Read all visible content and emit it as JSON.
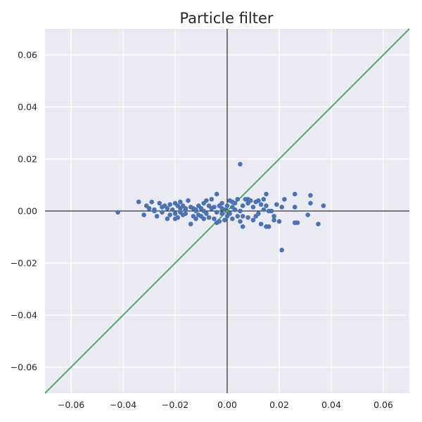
{
  "chart_data": {
    "type": "scatter",
    "title": "Particle filter",
    "xlabel": "",
    "ylabel": "",
    "xlim": [
      -0.07,
      0.07
    ],
    "ylim": [
      -0.07,
      0.07
    ],
    "xticks": [
      -0.06,
      -0.04,
      -0.02,
      0.0,
      0.02,
      0.04,
      0.06
    ],
    "yticks": [
      -0.06,
      -0.04,
      -0.02,
      0.0,
      0.02,
      0.04,
      0.06
    ],
    "xtick_labels": [
      "−0.06",
      "−0.04",
      "−0.02",
      "0.00",
      "0.02",
      "0.04",
      "0.06"
    ],
    "ytick_labels": [
      "−0.06",
      "−0.04",
      "−0.02",
      "0.00",
      "0.02",
      "0.04",
      "0.06"
    ],
    "grid": true,
    "colors": {
      "background": "#eaeaf2",
      "grid": "#ffffff",
      "points": "#4c72b0",
      "identity_line": "#55a868",
      "axis_lines": "#000000"
    },
    "reference_lines": [
      {
        "kind": "identity",
        "from": [
          -0.07,
          -0.07
        ],
        "to": [
          0.07,
          0.07
        ]
      },
      {
        "kind": "zero-x"
      },
      {
        "kind": "zero-y"
      }
    ],
    "series": [
      {
        "x": [
          -0.042,
          -0.034,
          -0.032,
          -0.031,
          -0.03,
          -0.029,
          -0.028,
          -0.027,
          -0.026,
          -0.025,
          -0.025,
          -0.024,
          -0.023,
          -0.023,
          -0.022,
          -0.022,
          -0.021,
          -0.02,
          -0.02,
          -0.019,
          -0.019,
          -0.018,
          -0.018,
          -0.017,
          -0.017,
          -0.016,
          -0.016,
          -0.015,
          -0.014,
          -0.014,
          -0.013,
          -0.013,
          -0.012,
          -0.012,
          -0.011,
          -0.011,
          -0.01,
          -0.01,
          -0.009,
          -0.009,
          -0.008,
          -0.008,
          -0.007,
          -0.007,
          -0.006,
          -0.006,
          -0.005,
          -0.005,
          -0.004,
          -0.004,
          -0.003,
          -0.003,
          -0.002,
          -0.002,
          -0.001,
          -0.001,
          0.0,
          0.0,
          0.001,
          0.001,
          0.002,
          0.002,
          0.003,
          0.003,
          0.004,
          0.004,
          0.005,
          0.005,
          0.006,
          0.006,
          0.007,
          0.008,
          0.008,
          0.009,
          0.01,
          0.01,
          0.011,
          0.012,
          0.012,
          0.013,
          0.014,
          0.014,
          0.015,
          0.015,
          0.016,
          0.017,
          0.018,
          0.019,
          0.02,
          0.021,
          0.022,
          0.026,
          0.026,
          0.027,
          0.031,
          0.032,
          0.035,
          0.037,
          0.005,
          0.021,
          -0.018,
          -0.012,
          -0.004,
          0.003,
          0.008,
          0.013,
          0.016,
          0.018,
          -0.02,
          -0.028,
          -0.009,
          0.002,
          0.011,
          0.026,
          0.032,
          -0.016,
          -0.002,
          0.006,
          0.015
        ],
        "y": [
          -0.0005,
          0.0035,
          -0.0015,
          0.002,
          0.001,
          0.0035,
          0.0005,
          -0.002,
          0.003,
          -0.0005,
          0.0015,
          0.002,
          -0.003,
          0.001,
          0.0025,
          -0.0015,
          0.0005,
          0.003,
          -0.001,
          0.002,
          -0.0025,
          0.001,
          0.0035,
          -0.0015,
          0.002,
          0.0005,
          -0.001,
          0.004,
          -0.005,
          0.0015,
          -0.002,
          0.001,
          -0.003,
          0.0005,
          0.002,
          -0.0015,
          0.001,
          -0.002,
          0.003,
          0.0,
          0.004,
          -0.001,
          0.002,
          -0.0025,
          0.0045,
          0.001,
          -0.003,
          0.0015,
          0.0065,
          -0.0005,
          0.002,
          -0.004,
          0.003,
          -0.001,
          0.0005,
          -0.0035,
          0.002,
          -0.002,
          0.004,
          -0.001,
          0.0015,
          -0.003,
          0.0005,
          0.003,
          -0.002,
          0.0045,
          0.0,
          -0.004,
          0.002,
          -0.006,
          0.0045,
          -0.0025,
          0.003,
          0.004,
          -0.0035,
          0.0015,
          0.0035,
          -0.001,
          0.004,
          -0.005,
          0.0005,
          0.0045,
          -0.006,
          0.0065,
          -0.006,
          0.0,
          -0.0035,
          0.0025,
          -0.004,
          0.0015,
          0.0045,
          0.0065,
          0.0015,
          -0.0045,
          -0.0015,
          0.006,
          -0.005,
          0.002,
          0.018,
          -0.015,
          -0.0005,
          0.0,
          -0.0045,
          0.0005,
          0.0045,
          0.0025,
          0.0,
          -0.002,
          -0.003,
          0.0,
          -0.003,
          0.0035,
          -0.002,
          -0.0045,
          0.003,
          0.001,
          0.001,
          -0.002,
          0.002
        ]
      }
    ]
  }
}
